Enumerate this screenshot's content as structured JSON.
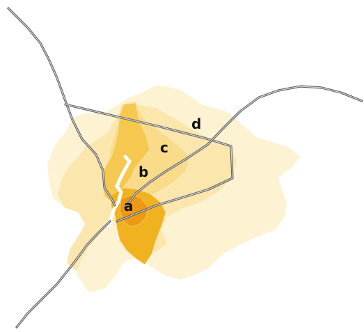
{
  "map": {
    "labels": {
      "a": "a",
      "b": "b",
      "c": "c",
      "d": "d"
    },
    "colors": {
      "background": "#ffffff",
      "zone_outer_light": "#fdf2d2",
      "zone_outer": "#fbe6ad",
      "zone_mid": "#f9db8a",
      "zone_inner": "#f6c84f",
      "zone_core": "#f1b21f",
      "zone_center": "#ec9a12",
      "river": "#ffffff",
      "road_outline": "#5a5a5a",
      "road_fill": "#d8d8d8",
      "label_text": "#111111"
    }
  }
}
